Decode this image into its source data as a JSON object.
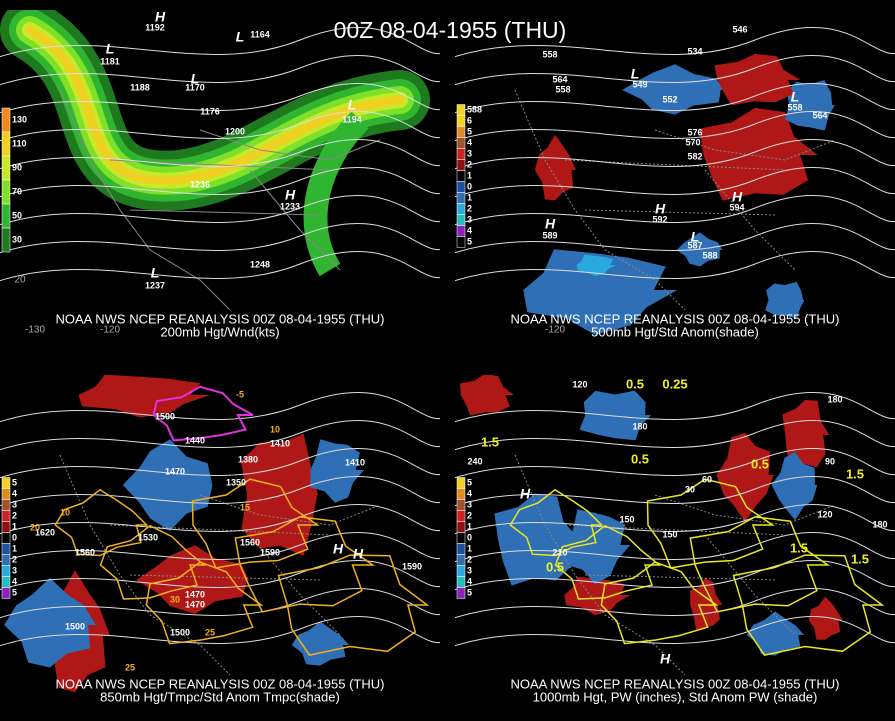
{
  "title": "00Z 08-04-1955 (THU)",
  "panels": [
    {
      "caption": [
        "NOAA NWS NCEP REANALYSIS 00Z 08-04-1955 (THU)",
        "200mb Hgt/Wnd(kts)"
      ],
      "scale": [
        "130",
        "110",
        "90",
        "70",
        "50",
        "30"
      ],
      "lon_labels": [
        "-130",
        "-120",
        "20"
      ],
      "labels": [
        "H",
        "1192",
        "L",
        "1181",
        "L",
        "1164",
        "L",
        "1170",
        "1188",
        "1176",
        "1200",
        "1236",
        "1248",
        "L",
        "1194",
        "H",
        "1233",
        "L",
        "1237"
      ]
    },
    {
      "caption": [
        "NOAA NWS NCEP REANALYSIS 00Z 08-04-1955 (THU)",
        "500mb Hgt/Std Anom(shade)"
      ],
      "scale": [
        "588",
        "6",
        "5",
        "4",
        "3",
        "2",
        "1",
        "0",
        "1",
        "2",
        "3",
        "4",
        "5"
      ],
      "lon_labels": [
        "-120"
      ],
      "labels": [
        "558",
        "564",
        "558",
        "552",
        "L",
        "549",
        "546",
        "534",
        "576",
        "570",
        "582",
        "L",
        "558",
        "564",
        "H",
        "594",
        "H",
        "592",
        "H",
        "589",
        "L",
        "587",
        "588"
      ]
    },
    {
      "caption": [
        "NOAA NWS NCEP REANALYSIS 00Z 08-04-1955 (THU)",
        "850mb Hgt/Tmpc/Std Anom Tmpc(shade)"
      ],
      "scale": [
        "5",
        "4",
        "3",
        "2",
        "1",
        "0",
        "1",
        "2",
        "3",
        "4",
        "5"
      ],
      "lon_labels": [],
      "labels": [
        "1500",
        "1440",
        "1470",
        "1410",
        "1350",
        "1380",
        "1470",
        "1530",
        "1560",
        "1590",
        "1620",
        "1590",
        "1560",
        "1470",
        "1500",
        "1500",
        "10",
        "15",
        "10",
        "25",
        "30",
        "25",
        "20",
        "-5",
        "H",
        "1410",
        "H"
      ]
    },
    {
      "caption": [
        "NOAA NWS NCEP REANALYSIS 00Z 08-04-1955 (THU)",
        "1000mb Hgt, PW (inches), Std Anom PW (shade)"
      ],
      "scale": [
        "5",
        "4",
        "3",
        "2",
        "1",
        "0",
        "1",
        "2",
        "3",
        "4",
        "5"
      ],
      "lon_labels": [],
      "labels": [
        "120",
        "180",
        "240",
        "210",
        "150",
        "180",
        "150",
        "60",
        "30",
        "90",
        "120",
        "180",
        "1.5",
        "0.5",
        "0.25",
        "0.5",
        "0.5",
        "1.5",
        "1.5",
        "0.5",
        "1.5",
        "H",
        "H"
      ]
    }
  ]
}
